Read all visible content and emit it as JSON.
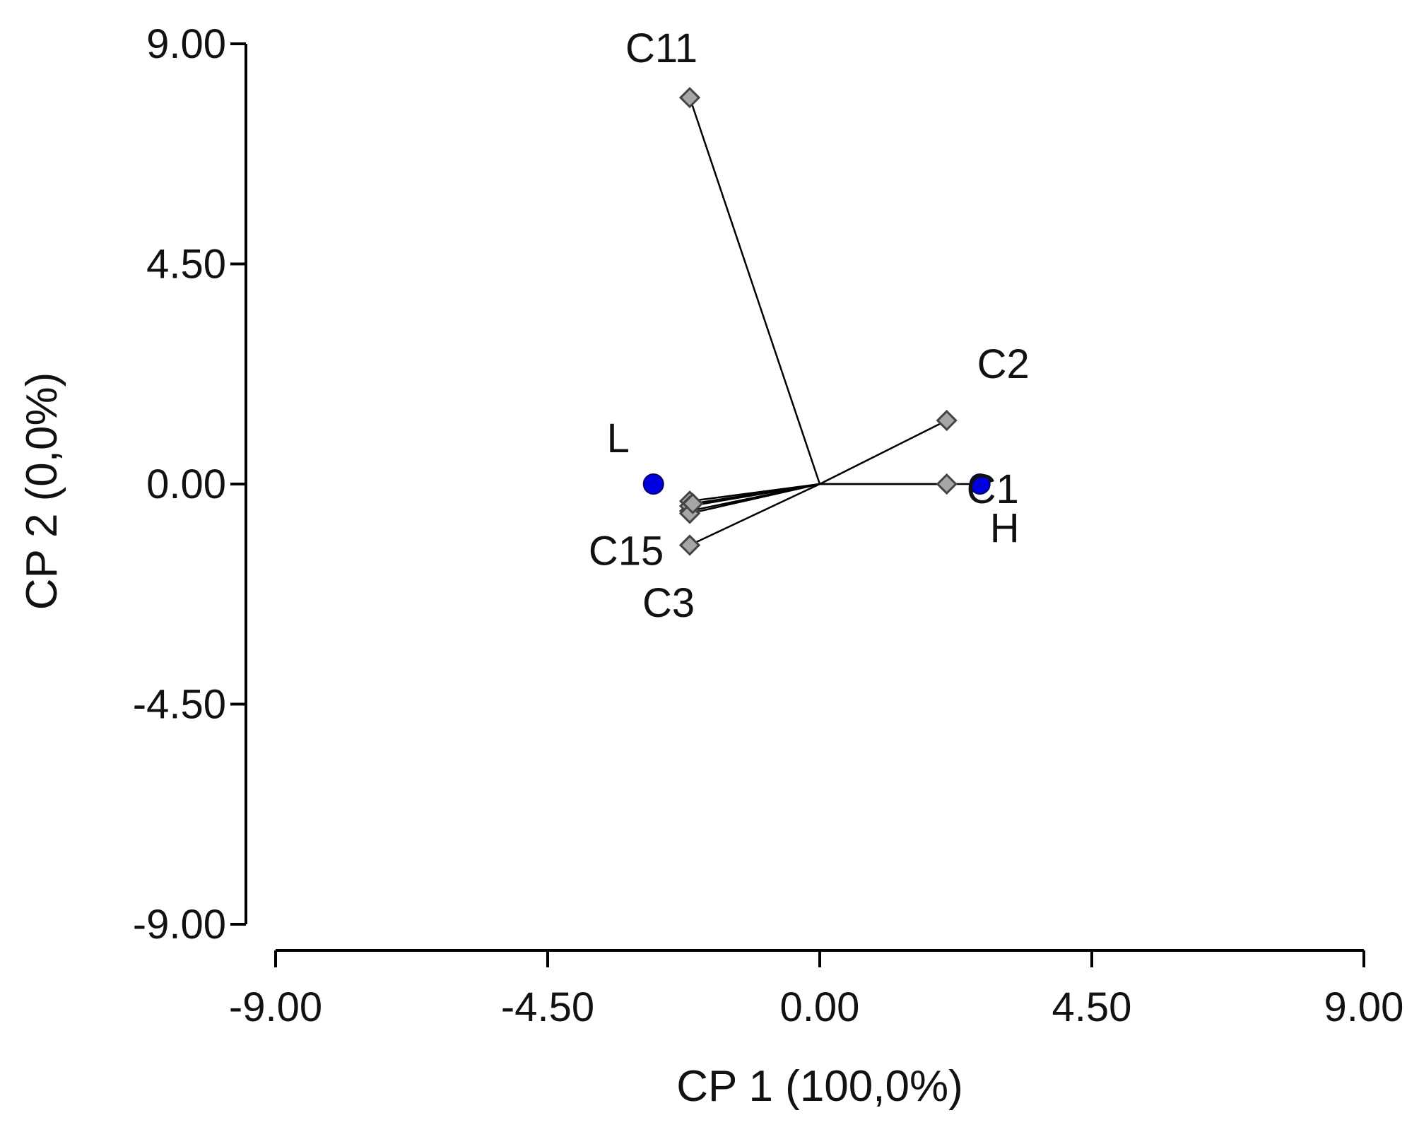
{
  "chart_data": {
    "type": "scatter",
    "title": "",
    "xlabel": "CP 1 (100,0%)",
    "ylabel": "CP 2 (0,0%)",
    "xlim": [
      -9.0,
      9.0
    ],
    "ylim": [
      -9.0,
      9.0
    ],
    "x_ticks": [
      "-9.00",
      "-4.50",
      "0.00",
      "4.50",
      "9.00"
    ],
    "y_ticks": [
      "9.00",
      "4.50",
      "0.00",
      "-4.50",
      "-9.00"
    ],
    "grid": false,
    "legend": "none",
    "origin": [
      0.0,
      0.0
    ],
    "colors": {
      "genotype_fill": "#a6a6a6",
      "genotype_stroke": "#444444",
      "environment_fill": "#0000dd",
      "vector": "#000000",
      "axis": "#000000"
    },
    "series": [
      {
        "name": "",
        "marker": "gray-diamond",
        "points": [
          {
            "label": "C11",
            "x": -2.15,
            "y": 7.9
          },
          {
            "label": "C2",
            "x": 2.1,
            "y": 1.3
          },
          {
            "label": "C1",
            "x": 2.1,
            "y": 0.0
          },
          {
            "label": "C15",
            "x": -2.15,
            "y": -1.25
          },
          {
            "label": "C3",
            "x": -2.15,
            "y": -0.55
          },
          {
            "label": "",
            "x": -2.15,
            "y": -0.35
          },
          {
            "label": "",
            "x": -2.15,
            "y": -0.45
          },
          {
            "label": "",
            "x": -2.15,
            "y": -0.6
          },
          {
            "label": "",
            "x": -2.1,
            "y": -0.4
          }
        ]
      },
      {
        "name": "",
        "marker": "blue-dot",
        "points": [
          {
            "label": "L",
            "x": -2.75,
            "y": 0.0
          },
          {
            "label": "H",
            "x": 2.65,
            "y": 0.0
          }
        ]
      }
    ],
    "label_positions_note": ""
  }
}
